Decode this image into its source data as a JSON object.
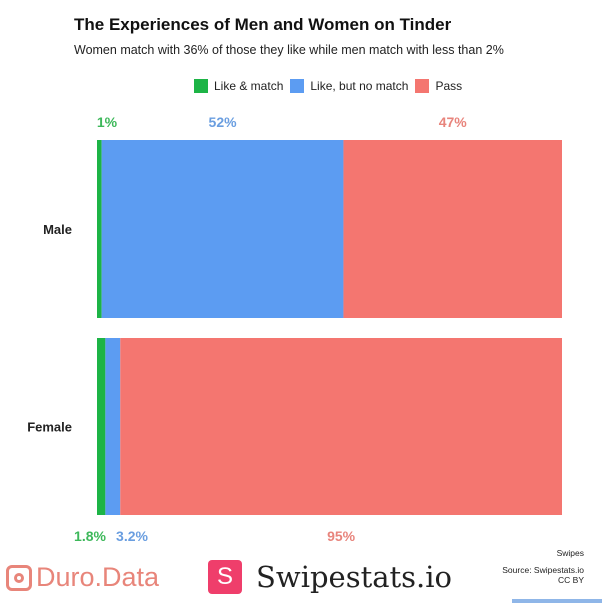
{
  "chart_data": {
    "type": "bar",
    "orientation": "horizontal",
    "stacked": true,
    "title": "The Experiences of Men and Women on Tinder",
    "subtitle": "Women match with 36% of those they like while men match with less than 2%",
    "categories": [
      "Male",
      "Female"
    ],
    "series": [
      {
        "name": "Like & match",
        "color": "#1db446",
        "values": [
          1,
          1.8
        ],
        "labels": [
          "1%",
          "1.8%"
        ]
      },
      {
        "name": "Like, but no match",
        "color": "#5c9cf2",
        "values": [
          52,
          3.2
        ],
        "labels": [
          "52%",
          "3.2%"
        ]
      },
      {
        "name": "Pass",
        "color": "#f47670",
        "values": [
          47,
          95
        ],
        "labels": [
          "47%",
          "95%"
        ]
      }
    ],
    "xlim": [
      0,
      100
    ],
    "legend": "top",
    "grid": false,
    "label_colors": [
      "#3db85a",
      "#6a9ee0",
      "#e8847c"
    ]
  },
  "footer": {
    "duro_logo": "Duro.Data",
    "swipestats_badge": "S",
    "swipestats_logo": "Swipestats.io",
    "note_swipes": "Swipes",
    "source": "Source: Swipestats.io",
    "license": "CC BY"
  }
}
